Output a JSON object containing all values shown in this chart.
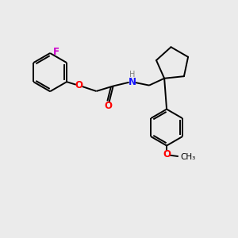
{
  "background_color": "#ebebeb",
  "bond_color": "#000000",
  "O_color": "#ff0000",
  "N_color": "#1414ff",
  "F_color": "#cc00cc",
  "H_color": "#808080",
  "line_width": 1.4,
  "figsize": [
    3.0,
    3.0
  ],
  "dpi": 100,
  "xlim": [
    0,
    10
  ],
  "ylim": [
    0,
    10
  ]
}
